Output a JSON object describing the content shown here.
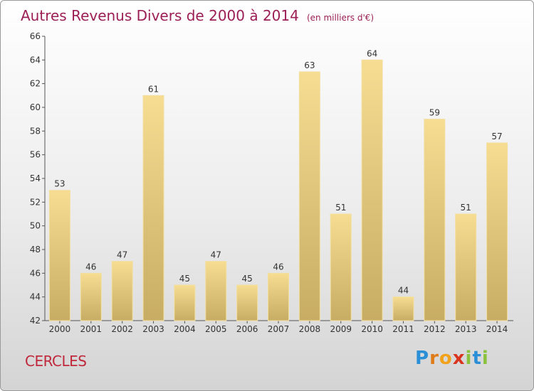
{
  "chart_data": {
    "type": "bar",
    "title": "Autres Revenus Divers de 2000 à 2014",
    "subtitle": "(en milliers d'€)",
    "categories": [
      "2000",
      "2001",
      "2002",
      "2003",
      "2004",
      "2005",
      "2006",
      "2007",
      "2008",
      "2009",
      "2010",
      "2011",
      "2012",
      "2013",
      "2014"
    ],
    "values": [
      53,
      46,
      47,
      61,
      45,
      47,
      45,
      46,
      63,
      51,
      64,
      44,
      59,
      51,
      57
    ],
    "ylim": [
      42,
      66
    ],
    "yticks": [
      42,
      44,
      46,
      48,
      50,
      52,
      54,
      56,
      58,
      60,
      62,
      64,
      66
    ],
    "grid": false,
    "bar_color": "#e8cc7c"
  },
  "place": "CERCLES",
  "brand": {
    "letters": [
      "P",
      "r",
      "o",
      "x",
      "i",
      "t",
      "i"
    ],
    "colors": [
      "#2a8fd6",
      "#e07b1a",
      "#f2a21a",
      "#d9341e",
      "#8ac23d",
      "#2a8fd6",
      "#8ac23d"
    ]
  }
}
